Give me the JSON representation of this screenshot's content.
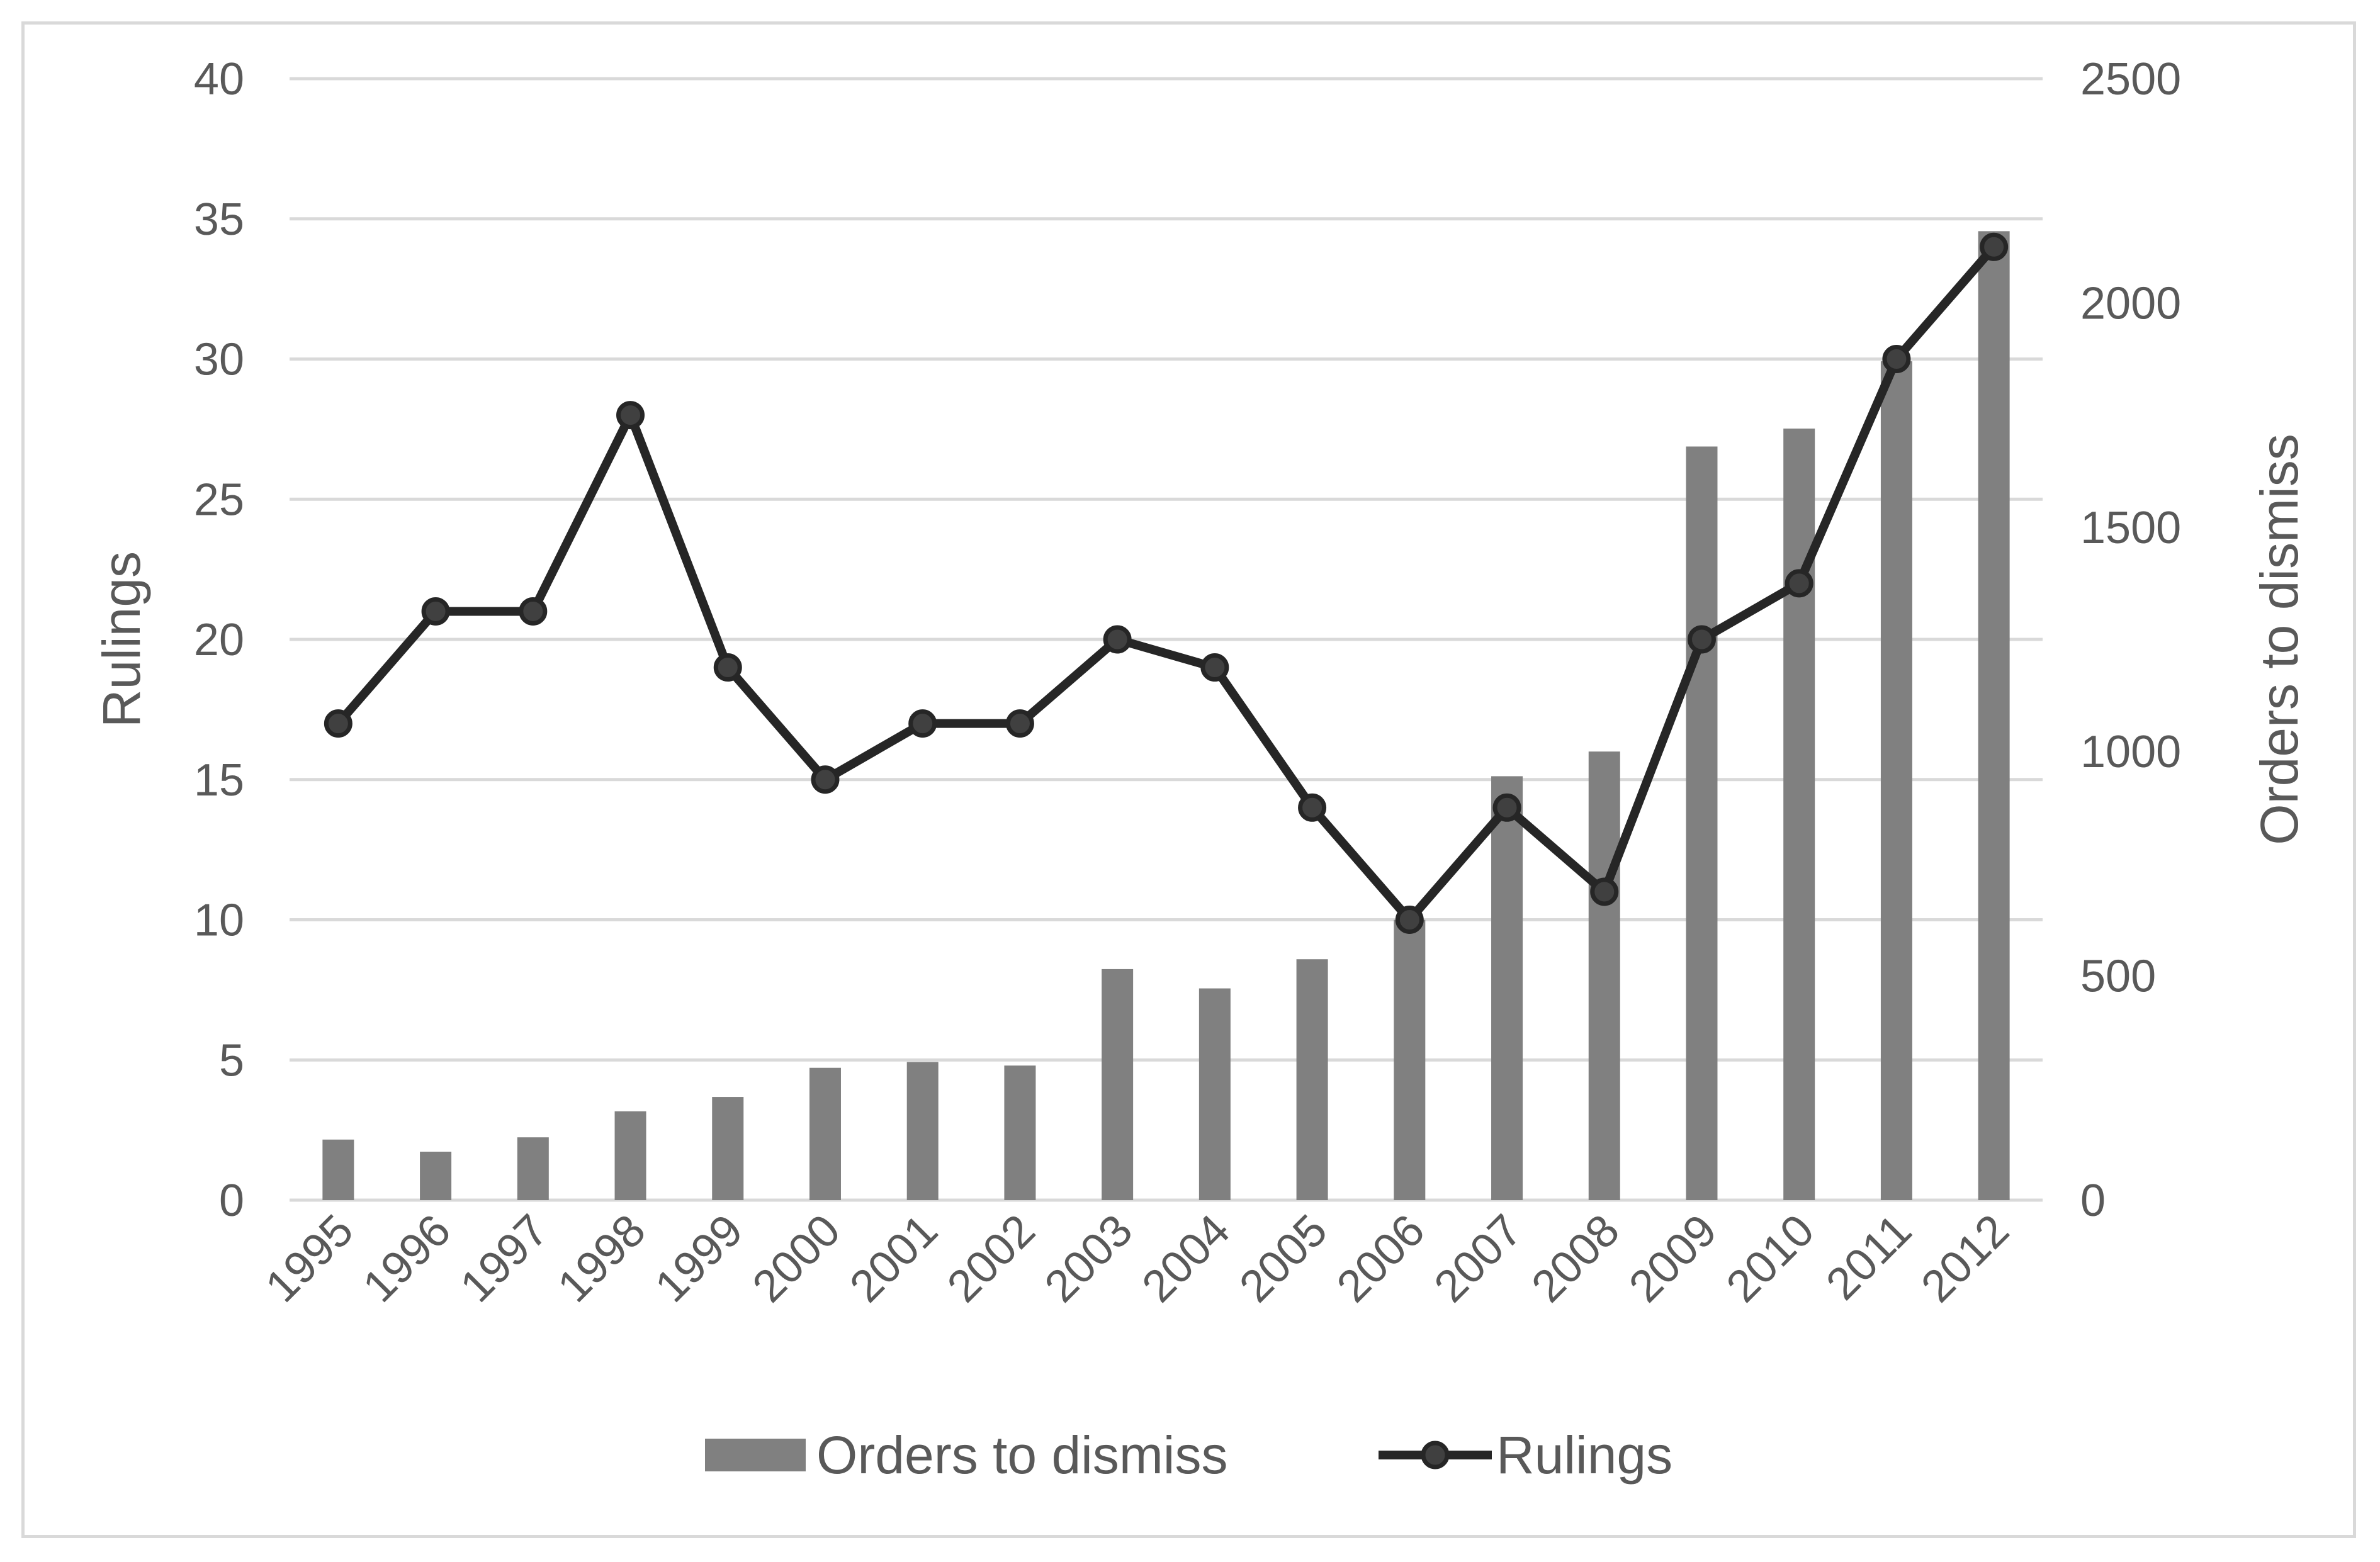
{
  "chart_data": {
    "type": "bar",
    "categories": [
      "1995",
      "1996",
      "1997",
      "1998",
      "1999",
      "2000",
      "2001",
      "2002",
      "2003",
      "2004",
      "2005",
      "2006",
      "2007",
      "2008",
      "2009",
      "2010",
      "2011",
      "2012"
    ],
    "series": [
      {
        "name": "Orders to dismiss",
        "type": "bar",
        "axis": "right",
        "color": "#808080",
        "values": [
          135,
          108,
          140,
          198,
          230,
          295,
          308,
          300,
          515,
          472,
          537,
          625,
          945,
          1000,
          1680,
          1720,
          1870,
          2160
        ]
      },
      {
        "name": "Rulings",
        "type": "line",
        "axis": "left",
        "color": "#262626",
        "marker_color": "#404040",
        "values": [
          17,
          21,
          21,
          28,
          19,
          15,
          17,
          17,
          20,
          19,
          14,
          10,
          14,
          11,
          20,
          22,
          30,
          34
        ]
      }
    ],
    "y_left": {
      "label": "Rulings",
      "min": 0,
      "max": 40,
      "step": 5,
      "ticks": [
        "0",
        "5",
        "10",
        "15",
        "20",
        "25",
        "30",
        "35",
        "40"
      ]
    },
    "y_right": {
      "label": "Orders to dismiss",
      "min": 0,
      "max": 2500,
      "step": 500,
      "ticks": [
        "0",
        "500",
        "1000",
        "1500",
        "2000",
        "2500"
      ]
    },
    "grid": true,
    "legend": {
      "position": "bottom",
      "entries": [
        "Orders to dismiss",
        "Rulings"
      ]
    }
  }
}
